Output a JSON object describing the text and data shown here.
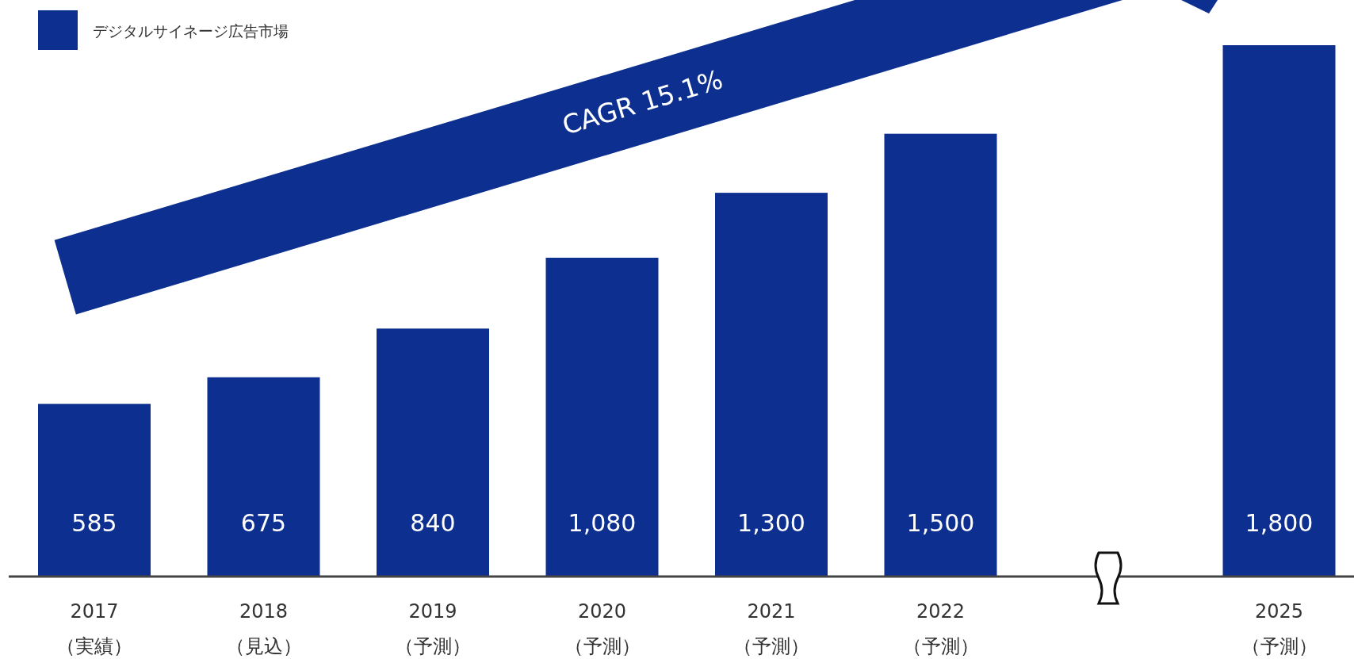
{
  "chart_data": {
    "type": "bar",
    "categories": [
      "2017\n（実績）",
      "2018\n（見込）",
      "2019\n（予測）",
      "2020\n（予測）",
      "2021\n（予測）",
      "2022\n（予測）",
      null,
      "2025\n（予測）"
    ],
    "series": [
      {
        "name": "デジタルサイネージ広告市場",
        "color": "#0d2f8f",
        "values": [
          585,
          675,
          840,
          1080,
          1300,
          1500,
          null,
          1800
        ],
        "value_labels": [
          "585",
          "675",
          "840",
          "1,080",
          "1,300",
          "1,500",
          null,
          "1,800"
        ]
      }
    ],
    "legend": "top left",
    "annotations": [
      "CAGR 15.1%"
    ]
  }
}
